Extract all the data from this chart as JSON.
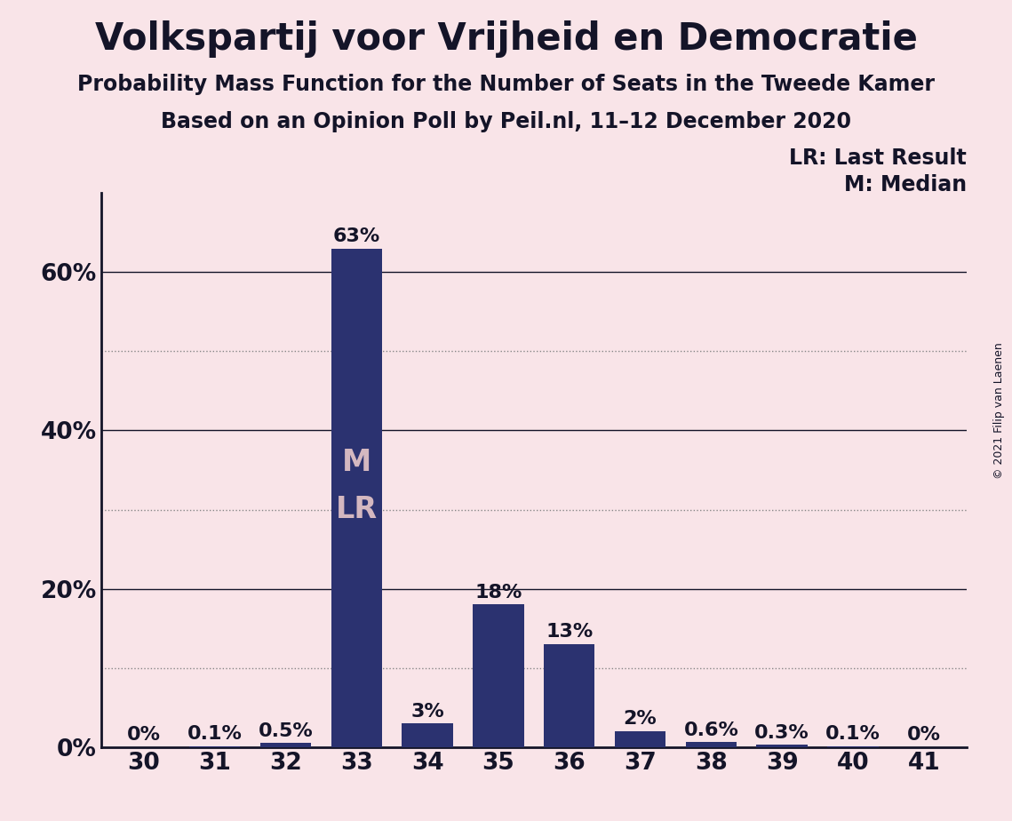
{
  "title": "Volkspartij voor Vrijheid en Democratie",
  "subtitle1": "Probability Mass Function for the Number of Seats in the Tweede Kamer",
  "subtitle2": "Based on an Opinion Poll by Peil.nl, 11–12 December 2020",
  "copyright": "© 2021 Filip van Laenen",
  "categories": [
    30,
    31,
    32,
    33,
    34,
    35,
    36,
    37,
    38,
    39,
    40,
    41
  ],
  "values": [
    0.0,
    0.1,
    0.5,
    63.0,
    3.0,
    18.0,
    13.0,
    2.0,
    0.6,
    0.3,
    0.1,
    0.0
  ],
  "labels": [
    "0%",
    "0.1%",
    "0.5%",
    "63%",
    "3%",
    "18%",
    "13%",
    "2%",
    "0.6%",
    "0.3%",
    "0.1%",
    "0%"
  ],
  "bar_color": "#2B3270",
  "background_color": "#F9E4E8",
  "text_color": "#141428",
  "label_color_inside": "#D4B8C0",
  "ylim": [
    0,
    70
  ],
  "solid_gridlines": [
    20,
    40,
    60
  ],
  "dotted_gridlines": [
    10,
    30,
    50
  ],
  "ytick_positions": [
    0,
    20,
    40,
    60
  ],
  "ytick_labels": [
    "0%",
    "20%",
    "40%",
    "60%"
  ],
  "median_seat": 33,
  "lr_seat": 33,
  "legend_lr": "LR: Last Result",
  "legend_m": "M: Median",
  "title_fontsize": 30,
  "subtitle_fontsize": 17,
  "axis_fontsize": 19,
  "label_fontsize": 16,
  "inside_label_fontsize": 24
}
